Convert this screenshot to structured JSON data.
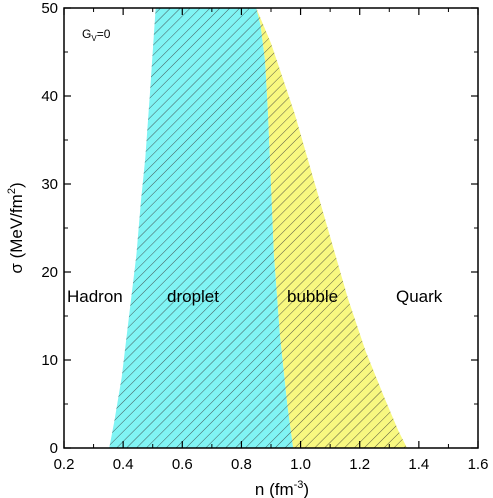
{
  "chart_data": {
    "type": "area",
    "xlabel": "n  (fm",
    "xlabel_exp": "-3",
    "xlabel_close": ")",
    "ylabel": "σ (MeV/fm",
    "ylabel_exp": "2",
    "ylabel_close": ")",
    "xlim": [
      0.2,
      1.6
    ],
    "ylim": [
      0,
      50
    ],
    "xticks": [
      0.2,
      0.4,
      0.6,
      0.8,
      1.0,
      1.2,
      1.4,
      1.6
    ],
    "xtick_labels": [
      "0.2",
      "0.4",
      "0.6",
      "0.8",
      "1.0",
      "1.2",
      "1.4",
      "1.6"
    ],
    "yticks": [
      0,
      10,
      20,
      30,
      40,
      50
    ],
    "ytick_labels": [
      "0",
      "10",
      "20",
      "30",
      "40",
      "50"
    ],
    "parameter_label": {
      "main": "G",
      "sub": "V",
      "rest": "=0"
    },
    "region_labels": {
      "hadron": "Hadron",
      "droplet": "droplet",
      "bubble": "bubble",
      "quark": "Quark"
    },
    "colors": {
      "droplet": "#80f4f4",
      "bubble": "#f8f880",
      "hatch": "#333333"
    },
    "boundaries": {
      "hadron_droplet": {
        "n": [
          0.353,
          0.37,
          0.395,
          0.42,
          0.445,
          0.46,
          0.475,
          0.49,
          0.5,
          0.51
        ],
        "sigma": [
          0,
          3,
          8,
          15,
          22,
          28,
          33,
          40,
          45,
          50
        ]
      },
      "droplet_bubble": {
        "n": [
          0.975,
          0.955,
          0.93,
          0.91,
          0.9,
          0.89,
          0.88,
          0.865,
          0.85
        ],
        "sigma": [
          0,
          5,
          13,
          22,
          30,
          38,
          44,
          48,
          50
        ]
      },
      "bubble_quark": {
        "n": [
          1.36,
          1.33,
          1.28,
          1.22,
          1.16,
          1.1,
          1.04,
          0.98,
          0.9,
          0.85
        ],
        "sigma": [
          0,
          2,
          6,
          11,
          17,
          24,
          31,
          38,
          46,
          50
        ]
      }
    }
  }
}
